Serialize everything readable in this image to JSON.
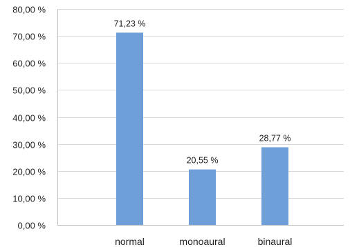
{
  "chart_data": {
    "type": "bar",
    "categories": [
      "normal",
      "monoaural",
      "binaural"
    ],
    "values": [
      71.23,
      20.55,
      28.77
    ],
    "data_labels": [
      "71,23 %",
      "20,55 %",
      "28,77 %"
    ],
    "ylim": [
      0,
      80
    ],
    "yticks": [
      0,
      10,
      20,
      30,
      40,
      50,
      60,
      70,
      80
    ],
    "ytick_labels": [
      "0,00 %",
      "10,00 %",
      "20,00 %",
      "30,00 %",
      "40,00 %",
      "50,00 %",
      "60,00 %",
      "70,00 %",
      "80,00 %"
    ],
    "title": "",
    "xlabel": "",
    "ylabel": "",
    "grid": true,
    "legend": "none",
    "bar_color": "#6f9fd8",
    "grid_color": "#d9d9d9",
    "axis_color": "#bfbfbf"
  }
}
